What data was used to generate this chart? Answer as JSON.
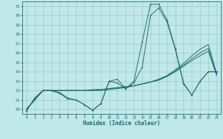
{
  "xlabel": "Humidex (Indice chaleur)",
  "background_color": "#c0e8e8",
  "grid_color": "#a0cccc",
  "line_color": "#1a6b6b",
  "xlim": [
    -0.5,
    23.5
  ],
  "ylim": [
    9.5,
    21.5
  ],
  "xticks": [
    0,
    1,
    2,
    3,
    4,
    5,
    6,
    7,
    8,
    9,
    10,
    11,
    12,
    13,
    14,
    15,
    16,
    17,
    18,
    19,
    20,
    21,
    22,
    23
  ],
  "yticks": [
    10,
    11,
    12,
    13,
    14,
    15,
    16,
    17,
    18,
    19,
    20,
    21
  ],
  "curve1_x": [
    0,
    1,
    2,
    3,
    4,
    5,
    6,
    7,
    8,
    9,
    10,
    11,
    12,
    13,
    14,
    15,
    16,
    17,
    18,
    19,
    20,
    21,
    22,
    23
  ],
  "curve1_y": [
    9.8,
    11.2,
    12.0,
    12.0,
    11.7,
    11.1,
    11.0,
    10.5,
    9.9,
    10.6,
    13.0,
    13.2,
    12.2,
    13.0,
    17.2,
    21.2,
    21.2,
    19.5,
    16.5,
    12.8,
    11.5,
    13.0,
    14.0,
    14.0
  ],
  "curve2_x": [
    0,
    1,
    2,
    3,
    4,
    5,
    6,
    7,
    8,
    9,
    10,
    11,
    12,
    13,
    14,
    15,
    16,
    17,
    18,
    19,
    20,
    21,
    22,
    23
  ],
  "curve2_y": [
    9.8,
    11.2,
    12.0,
    12.0,
    11.8,
    11.2,
    11.0,
    10.5,
    9.9,
    10.6,
    13.0,
    12.8,
    12.2,
    12.8,
    14.5,
    20.0,
    20.8,
    19.3,
    16.4,
    12.7,
    11.5,
    13.0,
    14.0,
    14.0
  ],
  "curve3_x": [
    0,
    1,
    2,
    3,
    4,
    5,
    6,
    7,
    8,
    9,
    10,
    11,
    12,
    13,
    14,
    15,
    16,
    17,
    18,
    19,
    20,
    21,
    22,
    23
  ],
  "curve3_y": [
    10.0,
    11.0,
    12.0,
    12.0,
    12.0,
    12.0,
    12.0,
    12.0,
    12.1,
    12.1,
    12.2,
    12.3,
    12.4,
    12.5,
    12.7,
    12.9,
    13.2,
    13.6,
    14.2,
    14.9,
    15.7,
    16.4,
    16.9,
    13.8
  ],
  "curve4_x": [
    0,
    1,
    2,
    3,
    4,
    5,
    6,
    7,
    8,
    9,
    10,
    11,
    12,
    13,
    14,
    15,
    16,
    17,
    18,
    19,
    20,
    21,
    22,
    23
  ],
  "curve4_y": [
    10.0,
    11.0,
    12.0,
    12.0,
    12.0,
    12.0,
    12.0,
    12.0,
    12.0,
    12.1,
    12.2,
    12.3,
    12.4,
    12.5,
    12.7,
    12.9,
    13.2,
    13.5,
    14.1,
    14.7,
    15.4,
    16.0,
    16.5,
    13.7
  ],
  "curve5_x": [
    0,
    1,
    2,
    3,
    4,
    5,
    6,
    7,
    8,
    9,
    10,
    11,
    12,
    13,
    14,
    15,
    16,
    17,
    18,
    19,
    20,
    21,
    22,
    23
  ],
  "curve5_y": [
    10.0,
    11.0,
    12.0,
    12.0,
    12.0,
    12.0,
    12.0,
    12.0,
    12.0,
    12.0,
    12.1,
    12.2,
    12.3,
    12.5,
    12.7,
    12.9,
    13.1,
    13.5,
    14.0,
    14.6,
    15.2,
    15.7,
    16.2,
    13.6
  ]
}
